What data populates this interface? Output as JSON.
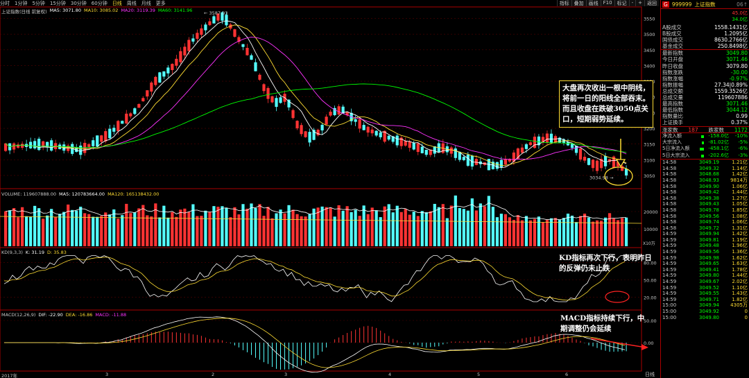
{
  "periods": [
    "分时",
    "1分钟",
    "5分钟",
    "15分钟",
    "30分钟",
    "60分钟",
    "日线",
    "周线",
    "月线",
    "更多"
  ],
  "active_period": "日线",
  "toolbar": [
    "指标",
    "叠加",
    "画线",
    "F10",
    "标记",
    "-",
    "+",
    "返回"
  ],
  "main_legend": {
    "name": "上证指数(日线 前复权)",
    "ma5": "MA5: 3071.80",
    "ma10": "MA10: 3085.02",
    "ma20": "MA20: 3119.39",
    "ma60": "MA60: 3141.96"
  },
  "volume_legend": {
    "vol": "VOLUME: 119607888.00",
    "ma5": "MA5: 120783664.00",
    "ma120": "MA120: 165138432.00"
  },
  "kd_legend": {
    "name": "KD(9,3,3)",
    "k": "K: 31.19",
    "d": "D: 35.83"
  },
  "macd_legend": {
    "name": "MACD(12,26,9)",
    "dif": "DIF: -22.90",
    "dea": "DEA: -16.86",
    "macd": "MACD: -11.88"
  },
  "price_axis": [
    "3550",
    "3500",
    "3450",
    "3400",
    "3350",
    "3300",
    "3250",
    "3200",
    "3150",
    "3100",
    "3050"
  ],
  "vol_axis": [
    "20000",
    "10000"
  ],
  "vol_unit": "X10万",
  "kd_axis": [
    "80.00",
    "50.00",
    "20.00"
  ],
  "macd_axis": [
    "50.00",
    "0.00"
  ],
  "high_label": "3587.03",
  "low_label": "3034.98",
  "date_axis": [
    "2017年",
    "3",
    "2",
    "3",
    "4",
    "5",
    "6"
  ],
  "corner": "日线",
  "annotations": {
    "main": "大盘再次收出一根中阴线，将前一日的阳线全部吞末。而且收盘在跌破3050点关口，短期弱势延续。",
    "kd": "KD指标再次下行，表明昨日的反弹仍未止跌",
    "macd": "MACD指标持续下行，中期调整仍会延续"
  },
  "quote": {
    "market": "G",
    "code": "999999",
    "name": "上证指数",
    "page": "06↑",
    "weibi": [
      "45.0亿",
      "34.0亿"
    ],
    "section1": [
      {
        "label": "A股成交",
        "value": "1558.1431亿"
      },
      {
        "label": "B股成交",
        "value": "1.2095亿"
      },
      {
        "label": "国债成交",
        "value": "8630.2766亿"
      },
      {
        "label": "基金成交",
        "value": "250.8498亿"
      }
    ],
    "section2": [
      {
        "label": "最新指数",
        "value": "3049.80",
        "color": "green"
      },
      {
        "label": "今日开盘",
        "value": "3071.46",
        "color": "green"
      },
      {
        "label": "昨日收盘",
        "value": "3079.80",
        "color": "white"
      },
      {
        "label": "指数涨跌",
        "value": "-30.00",
        "color": "green"
      },
      {
        "label": "指数涨幅",
        "value": "-0.97%",
        "color": "green"
      },
      {
        "label": "指数振幅",
        "value": "27.34|0.89%",
        "color": "white"
      },
      {
        "label": "总成交额",
        "value": "1559.3526亿",
        "color": "white"
      },
      {
        "label": "总成交量",
        "value": "119607886",
        "color": "white"
      },
      {
        "label": "最高指数",
        "value": "3071.46",
        "color": "green"
      },
      {
        "label": "最低指数",
        "value": "3044.12",
        "color": "green"
      },
      {
        "label": "指数量比",
        "value": "0.99",
        "color": "white"
      },
      {
        "label": "上证换手",
        "value": "0.37%",
        "color": "white"
      }
    ],
    "updown": {
      "label": "涨家数",
      "up": "187",
      "down_label": "跌家数",
      "down": "1172"
    },
    "flows": [
      {
        "label": "净流入额",
        "a": "-158.0亿",
        "b": "-10%",
        "w": 3
      },
      {
        "label": "大宗流入",
        "a": "-81.02亿",
        "b": "-5%",
        "w": 2
      },
      {
        "label": "5日净流入额",
        "a": "-458.1亿",
        "b": "-6%",
        "w": 4
      },
      {
        "label": "5日大宗流入",
        "a": "-202.6亿",
        "b": "-3%",
        "w": 3
      }
    ],
    "ticks": [
      [
        "14:58",
        "3049.19",
        "1.21亿"
      ],
      [
        "14:58",
        "3049.32",
        "1.14亿"
      ],
      [
        "14:58",
        "3048.68",
        "1.42亿"
      ],
      [
        "14:58",
        "3048.93",
        "9814万"
      ],
      [
        "14:58",
        "3049.90",
        "1.06亿"
      ],
      [
        "14:58",
        "3049.42",
        "1.44亿"
      ],
      [
        "14:58",
        "3049.38",
        "1.27亿"
      ],
      [
        "14:58",
        "3049.43",
        "1.05亿"
      ],
      [
        "14:58",
        "3049.78",
        "1.85亿"
      ],
      [
        "14:58",
        "3049.56",
        "1.08亿"
      ],
      [
        "14:58",
        "3049.74",
        "1.06亿"
      ],
      [
        "14:58",
        "3049.72",
        "1.31亿"
      ],
      [
        "14:59",
        "3049.94",
        "1.42亿"
      ],
      [
        "14:59",
        "3049.81",
        "1.19亿"
      ],
      [
        "14:59",
        "3049.48",
        "1.96亿"
      ],
      [
        "14:59",
        "3049.56",
        "1.36亿"
      ],
      [
        "14:59",
        "3049.98",
        "1.62亿"
      ],
      [
        "14:59",
        "3049.65",
        "1.63亿"
      ],
      [
        "14:59",
        "3049.41",
        "1.78亿"
      ],
      [
        "14:59",
        "3049.80",
        "1.44亿"
      ],
      [
        "14:59",
        "3049.67",
        "2.02亿"
      ],
      [
        "14:59",
        "3049.52",
        "1.10亿"
      ],
      [
        "14:59",
        "3049.55",
        "1.43亿"
      ],
      [
        "14:59",
        "3049.71",
        "1.82亿"
      ],
      [
        "15:00",
        "3049.94",
        "4305万"
      ],
      [
        "15:00",
        "3049.92",
        "0"
      ],
      [
        "15:00",
        "3049.80",
        "0"
      ]
    ]
  }
}
